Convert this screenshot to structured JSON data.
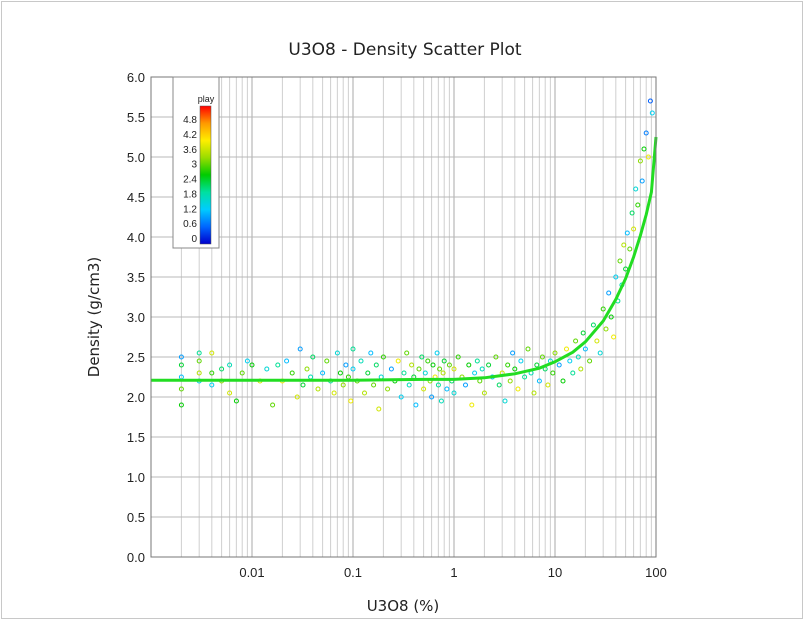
{
  "chart_data": {
    "type": "scatter",
    "title": "U3O8 - Density Scatter Plot",
    "xlabel": "U3O8 (%)",
    "ylabel": "Density (g/cm3)",
    "x_scale": "log",
    "xlim": [
      0.001,
      100
    ],
    "ylim": [
      0,
      6
    ],
    "x_ticks": [
      0.01,
      0.1,
      1,
      10,
      100
    ],
    "x_tick_labels": [
      "0.01",
      "0.1",
      "1",
      "10",
      "100"
    ],
    "y_ticks": [
      0,
      0.5,
      1,
      1.5,
      2,
      2.5,
      3,
      3.5,
      4,
      4.5,
      5,
      5.5,
      6
    ],
    "y_tick_labels": [
      "0.0",
      "0.5",
      "1.0",
      "1.5",
      "2.0",
      "2.5",
      "3.0",
      "3.5",
      "4.0",
      "4.5",
      "5.0",
      "5.5",
      "6.0"
    ],
    "grid": true,
    "legend": {
      "title": "play",
      "placement": "top-left",
      "ticks": [
        "4.8",
        "4.2",
        "3.6",
        "3",
        "2.4",
        "1.8",
        "1.2",
        "0.6",
        "0"
      ],
      "range": [
        0,
        5.2
      ],
      "colormap": [
        "#0000cc",
        "#0066ff",
        "#00ccff",
        "#00e0a0",
        "#00cc00",
        "#99dd00",
        "#ffee00",
        "#ff9900",
        "#ff0000"
      ]
    },
    "fit_line": {
      "color": "#22dd22",
      "points": [
        [
          0.001,
          2.21
        ],
        [
          0.01,
          2.21
        ],
        [
          0.1,
          2.21
        ],
        [
          0.5,
          2.22
        ],
        [
          1,
          2.22
        ],
        [
          2,
          2.24
        ],
        [
          4,
          2.29
        ],
        [
          7,
          2.36
        ],
        [
          10,
          2.44
        ],
        [
          15,
          2.56
        ],
        [
          20,
          2.69
        ],
        [
          30,
          2.95
        ],
        [
          40,
          3.22
        ],
        [
          50,
          3.48
        ],
        [
          60,
          3.75
        ],
        [
          70,
          4.02
        ],
        [
          80,
          4.28
        ],
        [
          90,
          4.56
        ],
        [
          100,
          5.25
        ]
      ]
    },
    "points": [
      [
        0.002,
        2.25,
        1.2
      ],
      [
        0.002,
        2.4,
        2.4
      ],
      [
        0.002,
        2.1,
        3.0
      ],
      [
        0.002,
        1.9,
        2.6
      ],
      [
        0.002,
        2.5,
        1.0
      ],
      [
        0.003,
        2.3,
        3.4
      ],
      [
        0.003,
        2.55,
        2.0
      ],
      [
        0.003,
        2.2,
        1.5
      ],
      [
        0.003,
        2.45,
        3.0
      ],
      [
        0.004,
        2.3,
        2.8
      ],
      [
        0.004,
        2.55,
        3.6
      ],
      [
        0.004,
        2.15,
        1.4
      ],
      [
        0.005,
        2.2,
        3.2
      ],
      [
        0.005,
        2.35,
        2.2
      ],
      [
        0.006,
        2.4,
        1.8
      ],
      [
        0.006,
        2.05,
        3.6
      ],
      [
        0.007,
        1.95,
        2.6
      ],
      [
        0.008,
        2.3,
        3.0
      ],
      [
        0.009,
        2.45,
        1.4
      ],
      [
        0.01,
        2.4,
        2.6
      ],
      [
        0.012,
        2.2,
        3.6
      ],
      [
        0.014,
        2.35,
        1.6
      ],
      [
        0.016,
        1.9,
        3.0
      ],
      [
        0.018,
        2.4,
        2.0
      ],
      [
        0.02,
        2.2,
        3.8
      ],
      [
        0.022,
        2.45,
        1.2
      ],
      [
        0.025,
        2.3,
        2.8
      ],
      [
        0.028,
        2.0,
        3.6
      ],
      [
        0.03,
        2.6,
        1.0
      ],
      [
        0.032,
        2.15,
        2.4
      ],
      [
        0.035,
        2.35,
        3.2
      ],
      [
        0.038,
        2.25,
        1.8
      ],
      [
        0.04,
        2.5,
        2.2
      ],
      [
        0.045,
        2.1,
        3.4
      ],
      [
        0.05,
        2.3,
        1.2
      ],
      [
        0.055,
        2.45,
        3.0
      ],
      [
        0.06,
        2.2,
        2.0
      ],
      [
        0.065,
        2.05,
        3.6
      ],
      [
        0.07,
        2.55,
        1.6
      ],
      [
        0.075,
        2.3,
        2.6
      ],
      [
        0.08,
        2.15,
        3.2
      ],
      [
        0.085,
        2.4,
        1.0
      ],
      [
        0.09,
        2.25,
        2.8
      ],
      [
        0.095,
        1.95,
        3.8
      ],
      [
        0.1,
        2.35,
        1.4
      ],
      [
        0.1,
        2.6,
        2.0
      ],
      [
        0.11,
        2.2,
        3.0
      ],
      [
        0.12,
        2.45,
        1.8
      ],
      [
        0.13,
        2.05,
        3.4
      ],
      [
        0.14,
        2.3,
        2.4
      ],
      [
        0.15,
        2.55,
        1.2
      ],
      [
        0.16,
        2.15,
        3.0
      ],
      [
        0.17,
        2.4,
        2.2
      ],
      [
        0.18,
        1.85,
        3.6
      ],
      [
        0.19,
        2.25,
        1.6
      ],
      [
        0.2,
        2.5,
        2.8
      ],
      [
        0.22,
        2.1,
        3.2
      ],
      [
        0.24,
        2.35,
        1.0
      ],
      [
        0.26,
        2.2,
        2.6
      ],
      [
        0.28,
        2.45,
        3.8
      ],
      [
        0.3,
        2.0,
        1.4
      ],
      [
        0.32,
        2.3,
        2.0
      ],
      [
        0.34,
        2.55,
        3.0
      ],
      [
        0.36,
        2.15,
        1.8
      ],
      [
        0.38,
        2.4,
        3.4
      ],
      [
        0.4,
        2.25,
        2.4
      ],
      [
        0.42,
        1.9,
        1.2
      ],
      [
        0.45,
        2.35,
        3.0
      ],
      [
        0.48,
        2.5,
        2.2
      ],
      [
        0.5,
        2.1,
        3.6
      ],
      [
        0.52,
        2.3,
        1.6
      ],
      [
        0.55,
        2.45,
        2.8
      ],
      [
        0.58,
        2.2,
        3.2
      ],
      [
        0.6,
        2.0,
        1.0
      ],
      [
        0.62,
        2.4,
        2.6
      ],
      [
        0.65,
        2.25,
        3.8
      ],
      [
        0.68,
        2.55,
        1.4
      ],
      [
        0.7,
        2.15,
        2.0
      ],
      [
        0.72,
        2.35,
        3.0
      ],
      [
        0.75,
        1.95,
        1.8
      ],
      [
        0.78,
        2.3,
        3.4
      ],
      [
        0.8,
        2.45,
        2.4
      ],
      [
        0.85,
        2.1,
        1.2
      ],
      [
        0.9,
        2.4,
        3.0
      ],
      [
        0.95,
        2.2,
        2.2
      ],
      [
        1.0,
        2.35,
        3.6
      ],
      [
        1.0,
        2.05,
        1.6
      ],
      [
        1.1,
        2.5,
        2.8
      ],
      [
        1.2,
        2.25,
        3.2
      ],
      [
        1.3,
        2.15,
        1.0
      ],
      [
        1.4,
        2.4,
        2.6
      ],
      [
        1.5,
        1.9,
        3.8
      ],
      [
        1.6,
        2.3,
        1.4
      ],
      [
        1.7,
        2.45,
        2.0
      ],
      [
        1.8,
        2.2,
        3.0
      ],
      [
        1.9,
        2.35,
        1.8
      ],
      [
        2.0,
        2.05,
        3.4
      ],
      [
        2.2,
        2.4,
        2.4
      ],
      [
        2.4,
        2.25,
        1.2
      ],
      [
        2.6,
        2.5,
        3.0
      ],
      [
        2.8,
        2.15,
        2.2
      ],
      [
        3.0,
        2.3,
        3.6
      ],
      [
        3.2,
        1.95,
        1.6
      ],
      [
        3.4,
        2.4,
        2.8
      ],
      [
        3.6,
        2.2,
        3.2
      ],
      [
        3.8,
        2.55,
        1.0
      ],
      [
        4.0,
        2.35,
        2.6
      ],
      [
        4.3,
        2.1,
        3.8
      ],
      [
        4.6,
        2.45,
        1.4
      ],
      [
        5.0,
        2.25,
        2.0
      ],
      [
        5.4,
        2.6,
        3.0
      ],
      [
        5.8,
        2.3,
        1.8
      ],
      [
        6.2,
        2.05,
        3.4
      ],
      [
        6.6,
        2.4,
        2.4
      ],
      [
        7.0,
        2.2,
        1.2
      ],
      [
        7.5,
        2.5,
        3.0
      ],
      [
        8.0,
        2.35,
        2.2
      ],
      [
        8.5,
        2.15,
        3.6
      ],
      [
        9.0,
        2.45,
        1.6
      ],
      [
        9.5,
        2.3,
        2.8
      ],
      [
        10.0,
        2.55,
        3.2
      ],
      [
        11.0,
        2.4,
        1.0
      ],
      [
        12.0,
        2.2,
        2.6
      ],
      [
        13.0,
        2.6,
        3.8
      ],
      [
        14.0,
        2.45,
        1.4
      ],
      [
        15.0,
        2.3,
        2.0
      ],
      [
        16.0,
        2.7,
        3.0
      ],
      [
        17.0,
        2.5,
        1.8
      ],
      [
        18.0,
        2.35,
        3.4
      ],
      [
        19.0,
        2.8,
        2.4
      ],
      [
        20.0,
        2.6,
        1.2
      ],
      [
        22.0,
        2.45,
        3.0
      ],
      [
        24.0,
        2.9,
        2.2
      ],
      [
        26.0,
        2.7,
        3.6
      ],
      [
        28.0,
        2.55,
        1.6
      ],
      [
        30.0,
        3.1,
        2.8
      ],
      [
        32.0,
        2.85,
        3.2
      ],
      [
        34.0,
        3.3,
        1.0
      ],
      [
        36.0,
        3.0,
        2.6
      ],
      [
        38.0,
        2.75,
        3.8
      ],
      [
        40.0,
        3.5,
        1.4
      ],
      [
        42.0,
        3.2,
        2.0
      ],
      [
        44.0,
        3.7,
        3.0
      ],
      [
        46.0,
        3.4,
        1.8
      ],
      [
        48.0,
        3.9,
        3.4
      ],
      [
        50.0,
        3.6,
        2.4
      ],
      [
        52.0,
        4.05,
        1.2
      ],
      [
        55.0,
        3.85,
        3.0
      ],
      [
        58.0,
        4.3,
        2.2
      ],
      [
        60.0,
        4.1,
        3.6
      ],
      [
        63.0,
        4.6,
        1.6
      ],
      [
        66.0,
        4.4,
        2.8
      ],
      [
        70.0,
        4.95,
        3.2
      ],
      [
        73.0,
        4.7,
        1.0
      ],
      [
        76.0,
        5.1,
        2.6
      ],
      [
        80.0,
        5.3,
        0.8
      ],
      [
        84.0,
        5.0,
        3.8
      ],
      [
        88.0,
        5.7,
        0.6
      ],
      [
        92.0,
        5.55,
        1.4
      ]
    ]
  }
}
